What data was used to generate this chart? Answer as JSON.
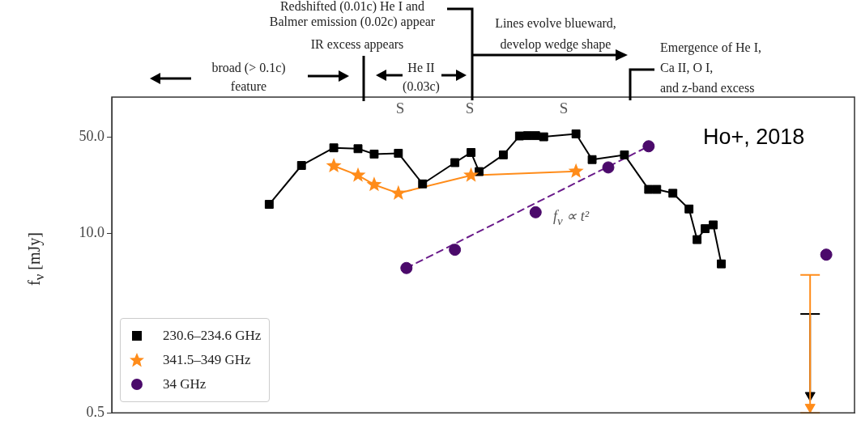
{
  "chart_data": {
    "type": "line",
    "ylabel": "f$_{ν}$ [mJy]",
    "log": "y",
    "ylim": [
      0.5,
      97
    ],
    "yticks": [
      {
        "value": 0.5,
        "label": "0.5"
      },
      {
        "value": 10,
        "label": "10.0"
      },
      {
        "value": 50,
        "label": "50.0"
      }
    ],
    "tick_labels": "y",
    "legend": "bottom left",
    "categories": [
      null,
      null,
      null,
      null,
      null,
      null,
      null,
      null,
      null,
      null,
      null,
      null,
      null,
      null,
      null,
      null,
      null,
      null,
      null,
      null,
      null,
      null,
      null,
      null,
      null,
      null,
      null,
      null,
      null,
      null,
      null,
      null,
      null,
      null,
      null,
      null,
      null,
      null,
      null,
      null,
      null,
      null,
      null,
      null,
      null,
      null,
      null,
      null,
      null,
      null,
      null,
      null,
      null,
      null,
      null,
      null,
      null,
      null,
      null,
      null,
      null,
      null,
      null,
      null,
      null,
      null,
      null,
      null,
      null,
      null,
      null,
      null,
      null,
      null,
      null,
      null,
      null,
      null,
      null,
      null,
      null,
      null,
      null,
      null,
      null,
      null,
      null,
      null,
      null,
      null,
      null,
      null
    ],
    "series": [
      {
        "name": "230.6–234.6 GHz",
        "type": "line",
        "color": "#000000",
        "marker": "square",
        "values": [
          null,
          null,
          null,
          null,
          null,
          null,
          null,
          null,
          null,
          null,
          null,
          null,
          null,
          null,
          null,
          null,
          null,
          null,
          null,
          16.2,
          null,
          null,
          null,
          31,
          null,
          null,
          null,
          41.6,
          null,
          null,
          41,
          null,
          37.5,
          null,
          null,
          38,
          null,
          null,
          22.8,
          null,
          null,
          null,
          32.5,
          null,
          38.5,
          28,
          null,
          null,
          37,
          null,
          50.7,
          51,
          51,
          50,
          null,
          null,
          null,
          52.5,
          null,
          34.2,
          null,
          null,
          null,
          37,
          null,
          null,
          20.8,
          20.8,
          null,
          19.5,
          null,
          15,
          9.0,
          10.8,
          11.5,
          6.0,
          null,
          null,
          null,
          null,
          null,
          null,
          null,
          null,
          null,
          null,
          null,
          null,
          null,
          null,
          null,
          null
        ]
      },
      {
        "name": "341.5–349 GHz",
        "type": "line",
        "color": "#ff8c1a",
        "marker": "star",
        "values": [
          null,
          null,
          null,
          null,
          null,
          null,
          null,
          null,
          null,
          null,
          null,
          null,
          null,
          null,
          null,
          null,
          null,
          null,
          null,
          null,
          null,
          null,
          null,
          null,
          null,
          null,
          null,
          30.8,
          null,
          null,
          26.3,
          null,
          22.5,
          null,
          null,
          19.5,
          null,
          null,
          null,
          null,
          null,
          null,
          null,
          null,
          26.3,
          null,
          null,
          null,
          null,
          null,
          null,
          null,
          null,
          null,
          null,
          null,
          null,
          28.1,
          null,
          null,
          null,
          null,
          null,
          null,
          null,
          null,
          null,
          null,
          null,
          null,
          null,
          null,
          null,
          null,
          null,
          null,
          null,
          null,
          null,
          null,
          null,
          null,
          null,
          null,
          null,
          null,
          null,
          null,
          null,
          null,
          null,
          null
        ]
      },
      {
        "name": "34 GHz",
        "type": "scatter",
        "color": "#4b0a6b",
        "marker": "circle",
        "values": [
          null,
          null,
          null,
          null,
          null,
          null,
          null,
          null,
          null,
          null,
          null,
          null,
          null,
          null,
          null,
          null,
          null,
          null,
          null,
          null,
          null,
          null,
          null,
          null,
          null,
          null,
          null,
          null,
          null,
          null,
          null,
          null,
          null,
          null,
          null,
          null,
          5.6,
          null,
          null,
          null,
          null,
          null,
          7.6,
          null,
          null,
          null,
          null,
          null,
          null,
          null,
          null,
          null,
          14.2,
          null,
          null,
          null,
          null,
          null,
          null,
          null,
          null,
          30,
          null,
          null,
          null,
          null,
          42.7,
          null,
          null,
          null,
          null,
          null,
          null,
          null,
          null,
          null,
          null,
          null,
          null,
          null,
          null,
          null,
          null,
          null,
          null,
          null,
          null,
          null,
          7.0,
          null,
          null,
          null
        ]
      },
      {
        "type": "line",
        "color": "#6a1b8a",
        "marker": "none",
        "line_style": "dashed",
        "values": [
          null,
          null,
          null,
          null,
          null,
          null,
          null,
          null,
          null,
          null,
          null,
          null,
          null,
          null,
          null,
          null,
          null,
          null,
          null,
          null,
          null,
          null,
          null,
          null,
          null,
          null,
          null,
          null,
          null,
          null,
          null,
          null,
          null,
          null,
          null,
          null,
          5.6,
          null,
          null,
          null,
          null,
          null,
          null,
          null,
          null,
          null,
          null,
          null,
          null,
          null,
          null,
          null,
          null,
          null,
          null,
          null,
          null,
          null,
          null,
          null,
          null,
          null,
          null,
          null,
          null,
          null,
          42.7,
          null,
          null,
          null,
          null,
          null,
          null,
          null,
          null,
          null,
          null,
          null,
          null,
          null,
          null,
          null,
          null,
          null,
          null,
          null,
          null,
          null,
          null,
          null,
          null,
          null
        ]
      },
      {
        "type": "scatter",
        "color": "#000000",
        "marker": "triangle",
        "values": [
          null,
          null,
          null,
          null,
          null,
          null,
          null,
          null,
          null,
          null,
          null,
          null,
          null,
          null,
          null,
          null,
          null,
          null,
          null,
          null,
          null,
          null,
          null,
          null,
          null,
          null,
          null,
          null,
          null,
          null,
          null,
          null,
          null,
          null,
          null,
          null,
          null,
          null,
          null,
          null,
          null,
          null,
          null,
          null,
          null,
          null,
          null,
          null,
          null,
          null,
          null,
          null,
          null,
          null,
          null,
          null,
          null,
          null,
          null,
          null,
          null,
          null,
          null,
          null,
          null,
          null,
          null,
          null,
          null,
          null,
          null,
          null,
          null,
          null,
          null,
          null,
          null,
          null,
          null,
          null,
          null,
          null,
          null,
          null,
          null,
          null,
          0.67,
          null,
          null,
          null,
          null,
          null
        ],
        "errors": [
          null,
          null,
          null,
          null,
          null,
          null,
          null,
          null,
          null,
          null,
          null,
          null,
          null,
          null,
          null,
          null,
          null,
          null,
          null,
          null,
          null,
          null,
          null,
          null,
          null,
          null,
          null,
          null,
          null,
          null,
          null,
          null,
          null,
          null,
          null,
          null,
          null,
          null,
          null,
          null,
          null,
          null,
          null,
          null,
          null,
          null,
          null,
          null,
          null,
          null,
          null,
          null,
          null,
          null,
          null,
          null,
          null,
          null,
          null,
          null,
          null,
          null,
          null,
          null,
          null,
          null,
          null,
          null,
          null,
          null,
          null,
          null,
          null,
          null,
          null,
          null,
          null,
          null,
          null,
          null,
          null,
          null,
          null,
          null,
          null,
          null,
          [
            0.67,
            2.6
          ],
          null,
          null,
          null,
          null,
          null
        ]
      },
      {
        "type": "scatter",
        "color": "#ff8c1a",
        "marker": "triangle",
        "values": [
          null,
          null,
          null,
          null,
          null,
          null,
          null,
          null,
          null,
          null,
          null,
          null,
          null,
          null,
          null,
          null,
          null,
          null,
          null,
          null,
          null,
          null,
          null,
          null,
          null,
          null,
          null,
          null,
          null,
          null,
          null,
          null,
          null,
          null,
          null,
          null,
          null,
          null,
          null,
          null,
          null,
          null,
          null,
          null,
          null,
          null,
          null,
          null,
          null,
          null,
          null,
          null,
          null,
          null,
          null,
          null,
          null,
          null,
          null,
          null,
          null,
          null,
          null,
          null,
          null,
          null,
          null,
          null,
          null,
          null,
          null,
          null,
          null,
          null,
          null,
          null,
          null,
          null,
          null,
          null,
          null,
          null,
          null,
          null,
          null,
          null,
          0.55,
          null,
          null,
          null,
          null,
          null
        ],
        "errors": [
          null,
          null,
          null,
          null,
          null,
          null,
          null,
          null,
          null,
          null,
          null,
          null,
          null,
          null,
          null,
          null,
          null,
          null,
          null,
          null,
          null,
          null,
          null,
          null,
          null,
          null,
          null,
          null,
          null,
          null,
          null,
          null,
          null,
          null,
          null,
          null,
          null,
          null,
          null,
          null,
          null,
          null,
          null,
          null,
          null,
          null,
          null,
          null,
          null,
          null,
          null,
          null,
          null,
          null,
          null,
          null,
          null,
          null,
          null,
          null,
          null,
          null,
          null,
          null,
          null,
          null,
          null,
          null,
          null,
          null,
          null,
          null,
          null,
          null,
          null,
          null,
          null,
          null,
          null,
          null,
          null,
          null,
          null,
          null,
          null,
          null,
          [
            0.5,
            5.0
          ],
          null,
          null,
          null,
          null,
          null
        ]
      }
    ],
    "annotations": [
      "Redshifted (0.01c) He I and",
      "Balmer emission (0.02c) appear",
      "IR excess appears",
      "broad (> 0.1c)",
      "feature",
      "He II",
      "(0.03c)",
      "Lines evolve blueward,",
      "develop wedge shape",
      "Emergence of He I,",
      "Ca II, O I,",
      "and z-band excess",
      "S",
      "S",
      "S",
      "Ho+, 2018",
      "f$_{ν}$ ∝ t²"
    ]
  }
}
